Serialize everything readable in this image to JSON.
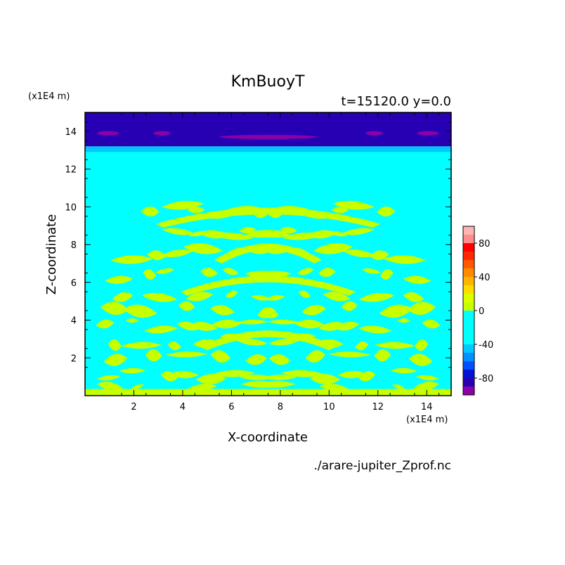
{
  "chart_data": {
    "type": "heatmap",
    "title": "KmBuoyT",
    "subtitle": "t=15120.0 y=0.0",
    "xlabel": "X-coordinate",
    "ylabel": "Z-coordinate",
    "x_unit": "(x1E4 m)",
    "y_unit": "(x1E4 m)",
    "xlim": [
      0,
      15
    ],
    "ylim": [
      0,
      15
    ],
    "x_ticks": [
      "2",
      "4",
      "6",
      "8",
      "10",
      "12",
      "14"
    ],
    "y_ticks": [
      "2",
      "4",
      "6",
      "8",
      "10",
      "12",
      "14"
    ],
    "source": "./arare-jupiter_Zprof.nc",
    "colorbar": {
      "levels": [
        -100,
        -90,
        -80,
        -70,
        -60,
        -50,
        -40,
        -30,
        -20,
        -10,
        0,
        10,
        20,
        30,
        40,
        50,
        60,
        70,
        80,
        90,
        100
      ],
      "labels": [
        "80",
        "40",
        "0",
        "-40",
        "-80"
      ],
      "colors": [
        "#8b00a8",
        "#2800b4",
        "#0014d2",
        "#0050ff",
        "#0090ff",
        "#00c8ff",
        "#00ffff",
        "#00ffff",
        "#00ffff",
        "#00ffff",
        "#c8ff00",
        "#dcff00",
        "#ffdc00",
        "#ffb400",
        "#ff8c00",
        "#ff5a00",
        "#ff2800",
        "#ff0000",
        "#ff8c8c",
        "#ffb4b4"
      ]
    },
    "field_bands": [
      {
        "z_from": 14.2,
        "z_to": 15.0,
        "value": -85
      },
      {
        "z_from": 13.2,
        "z_to": 14.2,
        "value": -82
      },
      {
        "z_from": 12.9,
        "z_to": 13.2,
        "value": -45
      },
      {
        "z_from": 12.6,
        "z_to": 12.9,
        "value": -20
      },
      {
        "z_from": 0.0,
        "z_to": 12.6,
        "value": -5
      }
    ],
    "positive_regions": [
      {
        "x": 7.5,
        "z": 9.8,
        "half_width": 5.2,
        "thickness": 0.55
      },
      {
        "x": 7.5,
        "z": 8.6,
        "half_width": 4.2,
        "thickness": 0.45
      },
      {
        "x": 7.5,
        "z": 7.5,
        "half_width": 6.5,
        "thickness": 0.5
      },
      {
        "x": 7.5,
        "z": 6.4,
        "half_width": 7.2,
        "thickness": 0.5
      },
      {
        "x": 7.5,
        "z": 5.3,
        "half_width": 6.8,
        "thickness": 0.45
      },
      {
        "x": 7.5,
        "z": 4.5,
        "half_width": 7.4,
        "thickness": 0.6
      },
      {
        "x": 7.5,
        "z": 3.7,
        "half_width": 7.5,
        "thickness": 0.45
      },
      {
        "x": 7.5,
        "z": 2.9,
        "half_width": 7.2,
        "thickness": 0.55
      },
      {
        "x": 7.5,
        "z": 2.0,
        "half_width": 7.5,
        "thickness": 0.55
      },
      {
        "x": 7.5,
        "z": 1.1,
        "half_width": 7.0,
        "thickness": 0.5
      },
      {
        "x": 7.5,
        "z": 0.4,
        "half_width": 7.5,
        "thickness": 0.4
      }
    ],
    "min_region": {
      "z": 13.9,
      "value": -95
    }
  }
}
